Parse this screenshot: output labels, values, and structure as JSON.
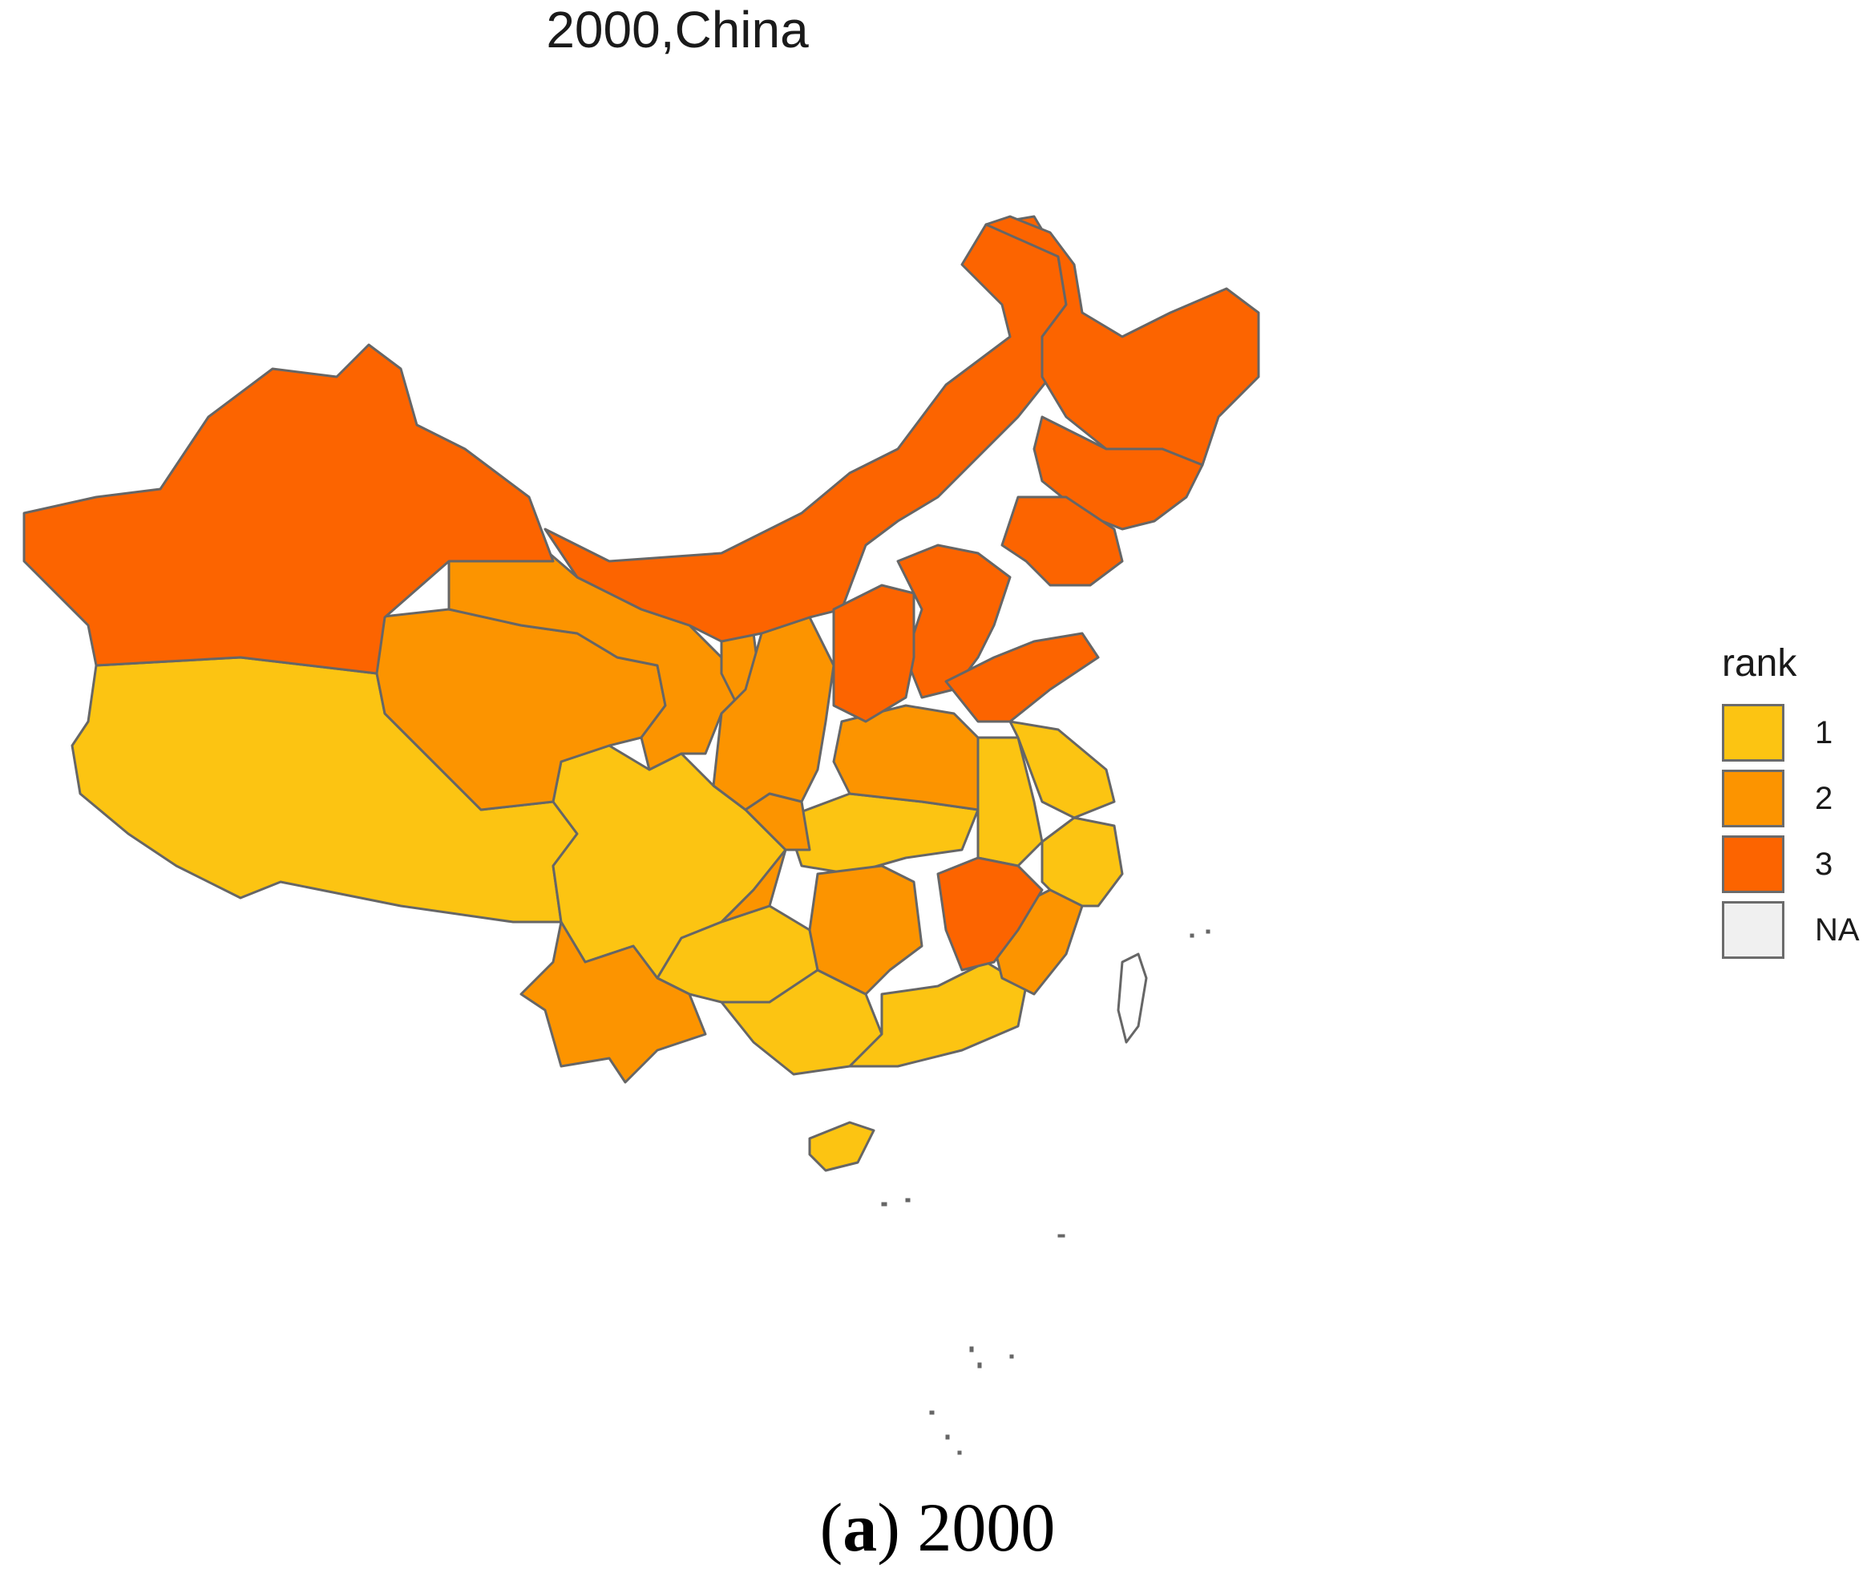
{
  "title": "2000,China",
  "legend": {
    "title": "rank",
    "items": [
      {
        "label": "1",
        "color": "#FCC412"
      },
      {
        "label": "2",
        "color": "#FC9400"
      },
      {
        "label": "3",
        "color": "#FC6400"
      },
      {
        "label": "NA",
        "color": "#F0F0F0"
      }
    ]
  },
  "caption": {
    "open": "(",
    "letter": "a",
    "close": ")",
    "year": "2000"
  },
  "border_color": "#666666",
  "regions_by_rank": {
    "1": [
      "Tibet",
      "Sichuan",
      "Guizhou",
      "Guangxi",
      "Guangdong",
      "Hainan",
      "Hubei",
      "Anhui",
      "Jiangsu",
      "Zhejiang",
      "Tianjin"
    ],
    "2": [
      "Qinghai",
      "Gansu",
      "Ningxia",
      "Shaanxi",
      "Henan",
      "Yunnan",
      "Hunan",
      "Chongqing",
      "Fujian",
      "Beijing"
    ],
    "3": [
      "Xinjiang",
      "Inner Mongolia",
      "Heilongjiang",
      "Jilin",
      "Liaoning",
      "Hebei",
      "Shanxi",
      "Shandong",
      "Jiangxi"
    ]
  }
}
